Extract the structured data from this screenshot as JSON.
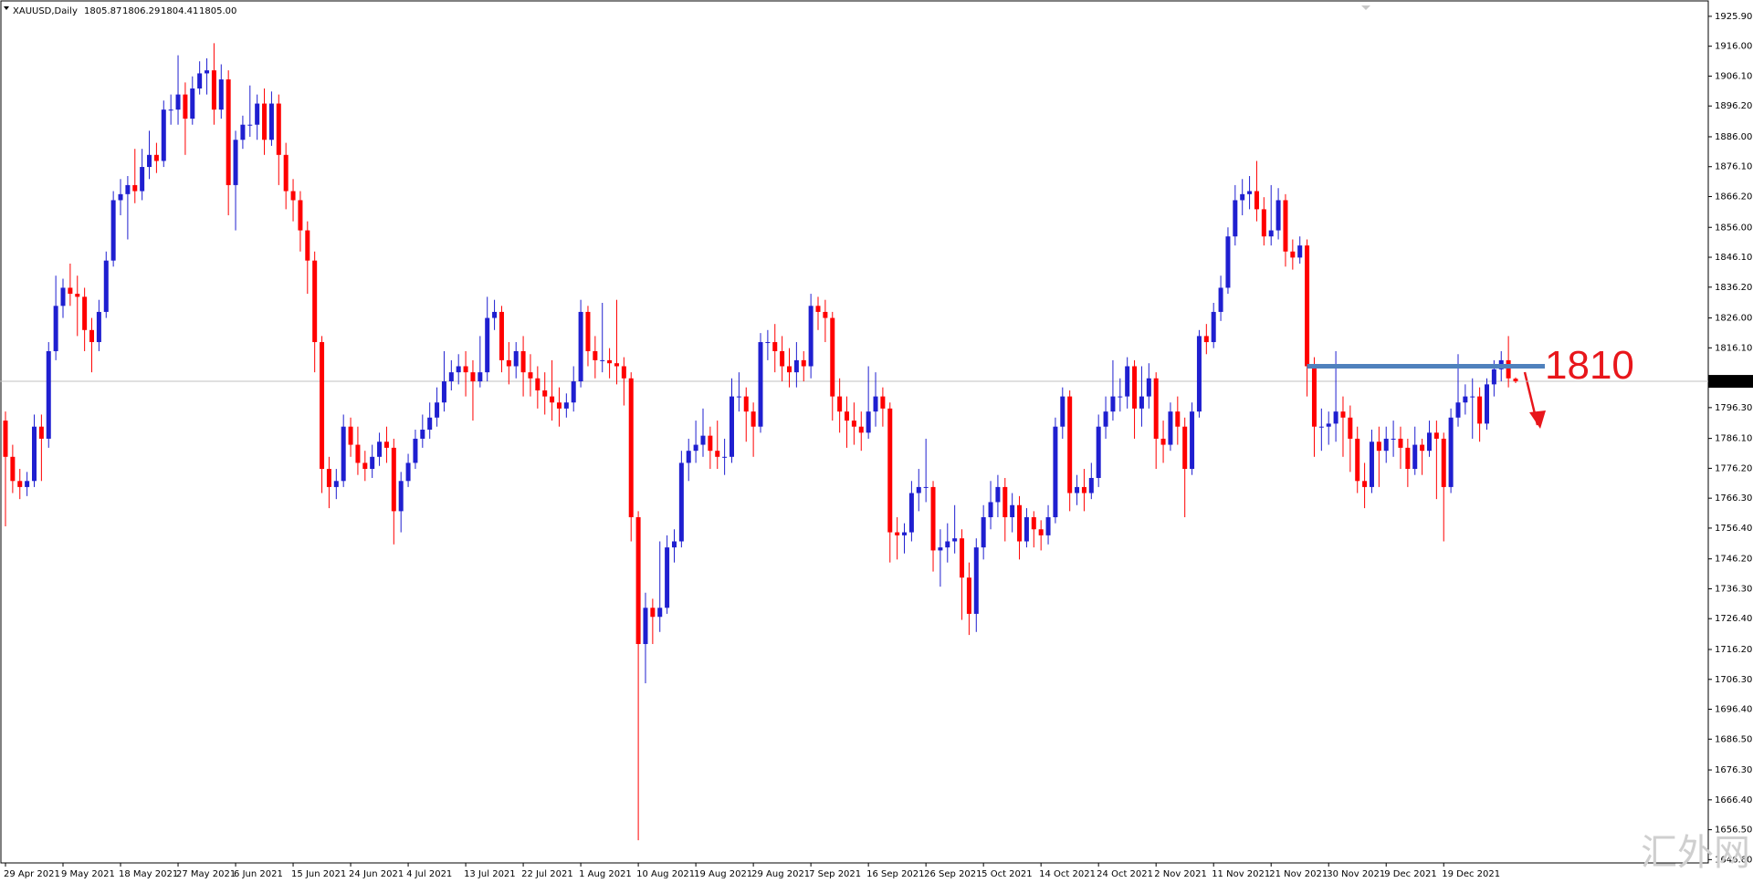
{
  "chart_data": {
    "type": "candlestick",
    "title": "XAUUSD,Daily",
    "grid": false,
    "bull_color": "#1f1fd0",
    "bear_color": "#ff0000",
    "ylim": [
      1645.5,
      1930.7
    ],
    "yticks": [
      {
        "value": 1925.9,
        "label": "1925.90"
      },
      {
        "value": 1916,
        "label": "1916.00"
      },
      {
        "value": 1906.1,
        "label": "1906.10"
      },
      {
        "value": 1896.2,
        "label": "1896.20"
      },
      {
        "value": 1886,
        "label": "1886.00"
      },
      {
        "value": 1876.1,
        "label": "1876.10"
      },
      {
        "value": 1866.2,
        "label": "1866.20"
      },
      {
        "value": 1856,
        "label": "1856.00"
      },
      {
        "value": 1846.1,
        "label": "1846.10"
      },
      {
        "value": 1836.2,
        "label": "1836.20"
      },
      {
        "value": 1826,
        "label": "1826.00"
      },
      {
        "value": 1816.1,
        "label": "1816.10"
      },
      {
        "value": 1796.3,
        "label": "1796.30"
      },
      {
        "value": 1786.1,
        "label": "1786.10"
      },
      {
        "value": 1776.2,
        "label": "1776.20"
      },
      {
        "value": 1766.3,
        "label": "1766.30"
      },
      {
        "value": 1756.4,
        "label": "1756.40"
      },
      {
        "value": 1746.2,
        "label": "1746.20"
      },
      {
        "value": 1736.3,
        "label": "1736.30"
      },
      {
        "value": 1726.4,
        "label": "1726.40"
      },
      {
        "value": 1716.2,
        "label": "1716.20"
      },
      {
        "value": 1706.3,
        "label": "1706.30"
      },
      {
        "value": 1696.4,
        "label": "1696.40"
      },
      {
        "value": 1686.5,
        "label": "1686.50"
      },
      {
        "value": 1676.3,
        "label": "1676.30"
      },
      {
        "value": 1666.4,
        "label": "1666.40"
      },
      {
        "value": 1656.5,
        "label": "1656.50"
      },
      {
        "value": 1646.6,
        "label": "1646.60"
      }
    ],
    "current_price": {
      "value": 1805,
      "label": "1805.00"
    },
    "annotation": {
      "level": 1810,
      "line_color": "#4f81bd",
      "text_color": "#e8161b"
    },
    "watermark": "汇外网",
    "categories": [
      "29 Apr 2021",
      null,
      null,
      null,
      null,
      null,
      null,
      null,
      "9 May 2021",
      null,
      null,
      null,
      null,
      null,
      null,
      null,
      "18 May 2021",
      null,
      null,
      null,
      null,
      null,
      null,
      null,
      "27 May 2021",
      null,
      null,
      null,
      null,
      null,
      null,
      null,
      "6 Jun 2021",
      null,
      null,
      null,
      null,
      null,
      null,
      null,
      "15 Jun 2021",
      null,
      null,
      null,
      null,
      null,
      null,
      null,
      "24 Jun 2021",
      null,
      null,
      null,
      null,
      null,
      null,
      null,
      "4 Jul 2021",
      null,
      null,
      null,
      null,
      null,
      null,
      null,
      "13 Jul 2021",
      null,
      null,
      null,
      null,
      null,
      null,
      null,
      "22 Jul 2021",
      null,
      null,
      null,
      null,
      null,
      null,
      null,
      "1 Aug 2021",
      null,
      null,
      null,
      null,
      null,
      null,
      null,
      "10 Aug 2021",
      null,
      null,
      null,
      null,
      null,
      null,
      null,
      "19 Aug 2021",
      null,
      null,
      null,
      null,
      null,
      null,
      null,
      "29 Aug 2021",
      null,
      null,
      null,
      null,
      null,
      null,
      null,
      "7 Sep 2021",
      null,
      null,
      null,
      null,
      null,
      null,
      null,
      "16 Sep 2021",
      null,
      null,
      null,
      null,
      null,
      null,
      null,
      "26 Sep 2021",
      null,
      null,
      null,
      null,
      null,
      null,
      null,
      "5 Oct 2021",
      null,
      null,
      null,
      null,
      null,
      null,
      null,
      "14 Oct 2021",
      null,
      null,
      null,
      null,
      null,
      null,
      null,
      "24 Oct 2021",
      null,
      null,
      null,
      null,
      null,
      null,
      null,
      "2 Nov 2021",
      null,
      null,
      null,
      null,
      null,
      null,
      null,
      "11 Nov 2021",
      null,
      null,
      null,
      null,
      null,
      null,
      null,
      "21 Nov 2021",
      null,
      null,
      null,
      null,
      null,
      null,
      null,
      "30 Nov 2021",
      null,
      null,
      null,
      null,
      null,
      null,
      null,
      "9 Dec 2021",
      null,
      null,
      null,
      null,
      null,
      null,
      null,
      "19 Dec 2021",
      null,
      null,
      null,
      null,
      null,
      null,
      null,
      null,
      null,
      null
    ],
    "open": [
      1792,
      1780,
      1772,
      1770,
      1772,
      1790,
      1786,
      1815,
      1830,
      1836,
      1834,
      1833,
      1822,
      1818,
      1828,
      1845,
      1865,
      1867,
      1870,
      1868,
      1876,
      1880,
      1878,
      1895,
      1895,
      1900,
      1892,
      1902,
      1907,
      1908,
      1895,
      1905,
      1870,
      1885,
      1890,
      1890,
      1897,
      1885,
      1897,
      1880,
      1868,
      1865,
      1855,
      1845,
      1818,
      1776,
      1770,
      1772,
      1790,
      1784,
      1778,
      1776,
      1780,
      1785,
      1783,
      1762,
      1772,
      1778,
      1786,
      1789,
      1793,
      1798,
      1805,
      1808,
      1810,
      1808,
      1805,
      1808,
      1826,
      1828,
      1812,
      1810,
      1815,
      1808,
      1806,
      1802,
      1800,
      1798,
      1796,
      1798,
      1805,
      1828,
      1815,
      1812,
      1812,
      1811,
      1810,
      1806,
      1760,
      1718,
      1730,
      1727,
      1730,
      1750,
      1752,
      1778,
      1782,
      1784,
      1787,
      1782,
      1780,
      1780,
      1800,
      1800,
      1795,
      1790,
      1818,
      1818,
      1815,
      1810,
      1808,
      1812,
      1810,
      1830,
      1828,
      1826,
      1800,
      1795,
      1792,
      1790,
      1788,
      1795,
      1800,
      1796,
      1755,
      1754,
      1755,
      1768,
      1770,
      1770,
      1749,
      1750,
      1752,
      1753,
      1740,
      1728,
      1750,
      1760,
      1765,
      1770,
      1760,
      1764,
      1752,
      1760,
      1756,
      1754,
      1760,
      1790,
      1800,
      1768,
      1770,
      1768,
      1773,
      1790,
      1795,
      1800,
      1800,
      1810,
      1796,
      1800,
      1806,
      1786,
      1784,
      1795,
      1790,
      1776,
      1795,
      1820,
      1818,
      1828,
      1836,
      1853,
      1865,
      1867,
      1868,
      1862,
      1853,
      1855,
      1865,
      1848,
      1846,
      1850,
      1810,
      1790,
      1790,
      1791,
      1795,
      1793,
      1786,
      1772,
      1770,
      1785,
      1782,
      1786,
      1786,
      1783,
      1776,
      1784,
      1782,
      1788,
      1786,
      1770,
      1793,
      1798,
      1800,
      1800,
      1791,
      1804,
      1809,
      1812,
      1805.87
    ],
    "high": [
      1795,
      1784,
      1776,
      1775,
      1794,
      1794,
      1818,
      1840,
      1839,
      1844,
      1840,
      1836,
      1826,
      1832,
      1848,
      1868,
      1872,
      1873,
      1882,
      1882,
      1888,
      1884,
      1898,
      1900,
      1913,
      1904,
      1906,
      1911,
      1912,
      1917,
      1910,
      1908,
      1888,
      1893,
      1903,
      1900,
      1902,
      1901,
      1900,
      1884,
      1872,
      1868,
      1858,
      1848,
      1820,
      1780,
      1776,
      1794,
      1793,
      1790,
      1782,
      1784,
      1788,
      1790,
      1786,
      1775,
      1781,
      1789,
      1794,
      1798,
      1803,
      1815,
      1812,
      1814,
      1815,
      1812,
      1820,
      1833,
      1832,
      1830,
      1818,
      1818,
      1820,
      1814,
      1810,
      1808,
      1812,
      1803,
      1801,
      1810,
      1832,
      1830,
      1820,
      1831,
      1816,
      1832,
      1813,
      1808,
      1762,
      1735,
      1733,
      1752,
      1754,
      1756,
      1782,
      1786,
      1792,
      1796,
      1790,
      1792,
      1786,
      1806,
      1808,
      1803,
      1798,
      1821,
      1822,
      1824,
      1820,
      1816,
      1818,
      1815,
      1834,
      1833,
      1832,
      1828,
      1806,
      1800,
      1798,
      1795,
      1810,
      1808,
      1803,
      1798,
      1760,
      1758,
      1772,
      1776,
      1786,
      1772,
      1756,
      1758,
      1764,
      1756,
      1745,
      1753,
      1764,
      1772,
      1774,
      1773,
      1768,
      1767,
      1763,
      1762,
      1759,
      1764,
      1793,
      1803,
      1802,
      1774,
      1776,
      1778,
      1794,
      1800,
      1812,
      1806,
      1813,
      1812,
      1810,
      1811,
      1808,
      1792,
      1798,
      1800,
      1793,
      1798,
      1822,
      1824,
      1831,
      1840,
      1856,
      1870,
      1872,
      1873,
      1878,
      1866,
      1870,
      1869,
      1867,
      1852,
      1853,
      1852,
      1813,
      1796,
      1795,
      1815,
      1800,
      1797,
      1790,
      1778,
      1789,
      1790,
      1790,
      1792,
      1790,
      1786,
      1790,
      1786,
      1792,
      1792,
      1788,
      1796,
      1814,
      1804,
      1806,
      1803,
      1806,
      1812,
      1815,
      1820,
      1806.29
    ],
    "low": [
      1757,
      1768,
      1766,
      1767,
      1770,
      1772,
      1783,
      1812,
      1826,
      1830,
      1820,
      1815,
      1808,
      1815,
      1826,
      1843,
      1860,
      1852,
      1864,
      1865,
      1872,
      1874,
      1876,
      1890,
      1890,
      1880,
      1890,
      1900,
      1900,
      1890,
      1892,
      1860,
      1855,
      1882,
      1886,
      1885,
      1880,
      1883,
      1870,
      1862,
      1858,
      1848,
      1834,
      1808,
      1768,
      1763,
      1766,
      1770,
      1780,
      1774,
      1772,
      1773,
      1777,
      1778,
      1751,
      1755,
      1770,
      1776,
      1783,
      1786,
      1790,
      1795,
      1802,
      1804,
      1800,
      1792,
      1803,
      1805,
      1822,
      1808,
      1804,
      1806,
      1800,
      1800,
      1796,
      1794,
      1792,
      1790,
      1793,
      1795,
      1803,
      1810,
      1806,
      1808,
      1806,
      1804,
      1797,
      1752,
      1653,
      1705,
      1718,
      1722,
      1728,
      1745,
      1750,
      1772,
      1778,
      1780,
      1776,
      1776,
      1774,
      1778,
      1795,
      1785,
      1780,
      1788,
      1812,
      1808,
      1805,
      1803,
      1803,
      1805,
      1806,
      1822,
      1818,
      1792,
      1788,
      1783,
      1784,
      1782,
      1786,
      1790,
      1790,
      1745,
      1746,
      1748,
      1752,
      1762,
      1765,
      1742,
      1737,
      1745,
      1748,
      1726,
      1721,
      1722,
      1746,
      1756,
      1760,
      1752,
      1755,
      1746,
      1750,
      1750,
      1749,
      1751,
      1758,
      1786,
      1762,
      1764,
      1762,
      1766,
      1770,
      1786,
      1792,
      1795,
      1796,
      1786,
      1790,
      1796,
      1776,
      1778,
      1782,
      1784,
      1760,
      1774,
      1793,
      1814,
      1816,
      1825,
      1834,
      1850,
      1860,
      1862,
      1858,
      1850,
      1850,
      1852,
      1843,
      1842,
      1844,
      1800,
      1780,
      1782,
      1784,
      1785,
      1780,
      1775,
      1768,
      1763,
      1768,
      1770,
      1778,
      1780,
      1776,
      1770,
      1774,
      1774,
      1780,
      1766,
      1752,
      1768,
      1790,
      1794,
      1786,
      1785,
      1789,
      1800,
      1805,
      1803,
      1804.41
    ],
    "close": [
      1780,
      1772,
      1770,
      1772,
      1790,
      1786,
      1815,
      1830,
      1836,
      1834,
      1833,
      1822,
      1818,
      1828,
      1845,
      1865,
      1867,
      1870,
      1868,
      1876,
      1880,
      1878,
      1895,
      1895,
      1900,
      1892,
      1902,
      1907,
      1908,
      1895,
      1905,
      1870,
      1885,
      1890,
      1890,
      1897,
      1885,
      1897,
      1880,
      1868,
      1865,
      1855,
      1845,
      1818,
      1776,
      1770,
      1772,
      1790,
      1784,
      1778,
      1776,
      1780,
      1785,
      1783,
      1762,
      1772,
      1778,
      1786,
      1789,
      1793,
      1798,
      1805,
      1808,
      1810,
      1808,
      1805,
      1808,
      1826,
      1828,
      1812,
      1810,
      1815,
      1808,
      1806,
      1802,
      1800,
      1798,
      1796,
      1798,
      1805,
      1828,
      1815,
      1812,
      1812,
      1811,
      1810,
      1806,
      1760,
      1718,
      1730,
      1727,
      1730,
      1750,
      1752,
      1778,
      1782,
      1784,
      1787,
      1782,
      1780,
      1780,
      1800,
      1800,
      1795,
      1790,
      1818,
      1818,
      1815,
      1810,
      1808,
      1812,
      1810,
      1830,
      1828,
      1826,
      1800,
      1795,
      1792,
      1790,
      1788,
      1795,
      1800,
      1796,
      1755,
      1754,
      1755,
      1768,
      1770,
      1770,
      1749,
      1750,
      1752,
      1753,
      1740,
      1728,
      1750,
      1760,
      1765,
      1770,
      1760,
      1764,
      1752,
      1760,
      1756,
      1754,
      1760,
      1790,
      1800,
      1768,
      1770,
      1768,
      1773,
      1790,
      1795,
      1800,
      1800,
      1810,
      1796,
      1800,
      1806,
      1786,
      1784,
      1795,
      1790,
      1776,
      1795,
      1820,
      1818,
      1828,
      1836,
      1853,
      1865,
      1867,
      1868,
      1862,
      1853,
      1855,
      1865,
      1848,
      1846,
      1850,
      1810,
      1790,
      1790,
      1791,
      1795,
      1793,
      1786,
      1772,
      1770,
      1785,
      1782,
      1786,
      1786,
      1783,
      1776,
      1784,
      1782,
      1788,
      1786,
      1770,
      1793,
      1798,
      1800,
      1800,
      1791,
      1804,
      1809,
      1812,
      1806,
      1805
    ]
  }
}
